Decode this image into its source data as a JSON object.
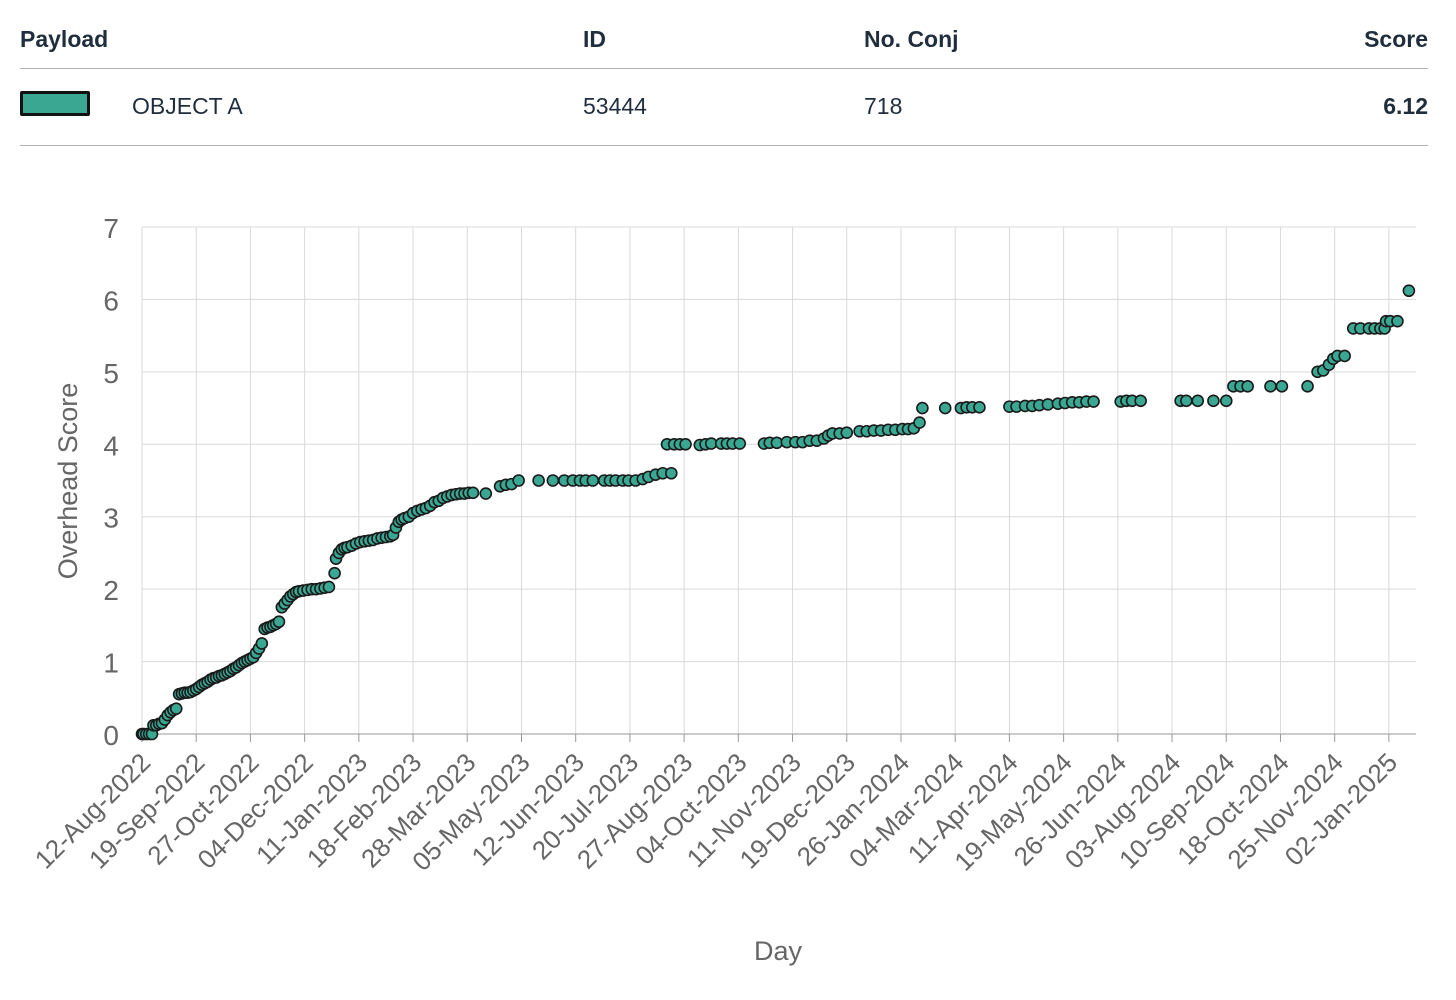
{
  "table": {
    "headers": {
      "payload": "Payload",
      "id": "ID",
      "no_conj": "No. Conj",
      "score": "Score"
    },
    "row": {
      "payload": "OBJECT A",
      "id": "53444",
      "no_conj": "718",
      "score": "6.12",
      "swatch_color": "#3aa792"
    }
  },
  "colors": {
    "marker_fill": "#3aa792",
    "marker_stroke": "#1a1a1a",
    "grid": "#d9d9d9",
    "axis_text": "#666666"
  },
  "chart_data": {
    "type": "scatter",
    "xlabel": "Day",
    "ylabel": "Overhead Score",
    "ylim": [
      0,
      7
    ],
    "yticks": [
      "0",
      "1",
      "2",
      "3",
      "4",
      "5",
      "6",
      "7"
    ],
    "xticks": [
      "12-Aug-2022",
      "19-Sep-2022",
      "27-Oct-2022",
      "04-Dec-2022",
      "11-Jan-2023",
      "18-Feb-2023",
      "28-Mar-2023",
      "05-May-2023",
      "12-Jun-2023",
      "20-Jul-2023",
      "27-Aug-2023",
      "04-Oct-2023",
      "11-Nov-2023",
      "19-Dec-2023",
      "26-Jan-2024",
      "04-Mar-2024",
      "11-Apr-2024",
      "19-May-2024",
      "26-Jun-2024",
      "03-Aug-2024",
      "10-Sep-2024",
      "18-Oct-2024",
      "25-Nov-2024",
      "02-Jan-2025"
    ],
    "xlim": [
      "12-Aug-2022",
      "21-Jan-2025"
    ],
    "grid": true,
    "series": [
      {
        "points": [
          [
            "12-Aug-2022",
            0.0
          ],
          [
            "13-Aug-2022",
            0.0
          ],
          [
            "15-Aug-2022",
            0.0
          ],
          [
            "17-Aug-2022",
            0.0
          ],
          [
            "19-Aug-2022",
            0.0
          ],
          [
            "20-Aug-2022",
            0.12
          ],
          [
            "22-Aug-2022",
            0.12
          ],
          [
            "24-Aug-2022",
            0.14
          ],
          [
            "26-Aug-2022",
            0.15
          ],
          [
            "28-Aug-2022",
            0.2
          ],
          [
            "30-Aug-2022",
            0.26
          ],
          [
            "01-Sep-2022",
            0.3
          ],
          [
            "03-Sep-2022",
            0.33
          ],
          [
            "05-Sep-2022",
            0.35
          ],
          [
            "07-Sep-2022",
            0.55
          ],
          [
            "09-Sep-2022",
            0.56
          ],
          [
            "11-Sep-2022",
            0.57
          ],
          [
            "13-Sep-2022",
            0.57
          ],
          [
            "15-Sep-2022",
            0.58
          ],
          [
            "17-Sep-2022",
            0.6
          ],
          [
            "19-Sep-2022",
            0.62
          ],
          [
            "21-Sep-2022",
            0.65
          ],
          [
            "23-Sep-2022",
            0.68
          ],
          [
            "25-Sep-2022",
            0.7
          ],
          [
            "27-Sep-2022",
            0.72
          ],
          [
            "29-Sep-2022",
            0.75
          ],
          [
            "01-Oct-2022",
            0.77
          ],
          [
            "03-Oct-2022",
            0.78
          ],
          [
            "05-Oct-2022",
            0.8
          ],
          [
            "07-Oct-2022",
            0.81
          ],
          [
            "09-Oct-2022",
            0.83
          ],
          [
            "11-Oct-2022",
            0.85
          ],
          [
            "13-Oct-2022",
            0.87
          ],
          [
            "15-Oct-2022",
            0.9
          ],
          [
            "17-Oct-2022",
            0.92
          ],
          [
            "19-Oct-2022",
            0.95
          ],
          [
            "21-Oct-2022",
            0.98
          ],
          [
            "23-Oct-2022",
            1.0
          ],
          [
            "25-Oct-2022",
            1.02
          ],
          [
            "27-Oct-2022",
            1.04
          ],
          [
            "29-Oct-2022",
            1.06
          ],
          [
            "31-Oct-2022",
            1.12
          ],
          [
            "02-Nov-2022",
            1.18
          ],
          [
            "04-Nov-2022",
            1.25
          ],
          [
            "06-Nov-2022",
            1.45
          ],
          [
            "08-Nov-2022",
            1.47
          ],
          [
            "10-Nov-2022",
            1.48
          ],
          [
            "12-Nov-2022",
            1.5
          ],
          [
            "14-Nov-2022",
            1.52
          ],
          [
            "16-Nov-2022",
            1.55
          ],
          [
            "18-Nov-2022",
            1.75
          ],
          [
            "20-Nov-2022",
            1.8
          ],
          [
            "22-Nov-2022",
            1.85
          ],
          [
            "24-Nov-2022",
            1.9
          ],
          [
            "26-Nov-2022",
            1.93
          ],
          [
            "28-Nov-2022",
            1.96
          ],
          [
            "30-Nov-2022",
            1.97
          ],
          [
            "03-Dec-2022",
            1.98
          ],
          [
            "06-Dec-2022",
            1.99
          ],
          [
            "09-Dec-2022",
            2.0
          ],
          [
            "12-Dec-2022",
            2.0
          ],
          [
            "15-Dec-2022",
            2.01
          ],
          [
            "18-Dec-2022",
            2.02
          ],
          [
            "21-Dec-2022",
            2.03
          ],
          [
            "25-Dec-2022",
            2.22
          ],
          [
            "26-Dec-2022",
            2.42
          ],
          [
            "28-Dec-2022",
            2.5
          ],
          [
            "30-Dec-2022",
            2.55
          ],
          [
            "01-Jan-2023",
            2.57
          ],
          [
            "03-Jan-2023",
            2.58
          ],
          [
            "06-Jan-2023",
            2.6
          ],
          [
            "09-Jan-2023",
            2.63
          ],
          [
            "12-Jan-2023",
            2.65
          ],
          [
            "15-Jan-2023",
            2.66
          ],
          [
            "18-Jan-2023",
            2.67
          ],
          [
            "21-Jan-2023",
            2.68
          ],
          [
            "24-Jan-2023",
            2.7
          ],
          [
            "27-Jan-2023",
            2.71
          ],
          [
            "30-Jan-2023",
            2.72
          ],
          [
            "02-Feb-2023",
            2.73
          ],
          [
            "04-Feb-2023",
            2.75
          ],
          [
            "06-Feb-2023",
            2.85
          ],
          [
            "08-Feb-2023",
            2.93
          ],
          [
            "10-Feb-2023",
            2.96
          ],
          [
            "12-Feb-2023",
            2.98
          ],
          [
            "15-Feb-2023",
            3.0
          ],
          [
            "18-Feb-2023",
            3.05
          ],
          [
            "21-Feb-2023",
            3.08
          ],
          [
            "24-Feb-2023",
            3.1
          ],
          [
            "27-Feb-2023",
            3.12
          ],
          [
            "02-Mar-2023",
            3.15
          ],
          [
            "05-Mar-2023",
            3.2
          ],
          [
            "08-Mar-2023",
            3.22
          ],
          [
            "11-Mar-2023",
            3.26
          ],
          [
            "14-Mar-2023",
            3.28
          ],
          [
            "17-Mar-2023",
            3.3
          ],
          [
            "20-Mar-2023",
            3.31
          ],
          [
            "23-Mar-2023",
            3.32
          ],
          [
            "26-Mar-2023",
            3.32
          ],
          [
            "29-Mar-2023",
            3.33
          ],
          [
            "01-Apr-2023",
            3.33
          ],
          [
            "10-Apr-2023",
            3.32
          ],
          [
            "20-Apr-2023",
            3.42
          ],
          [
            "24-Apr-2023",
            3.44
          ],
          [
            "28-Apr-2023",
            3.45
          ],
          [
            "03-May-2023",
            3.5
          ],
          [
            "17-May-2023",
            3.5
          ],
          [
            "27-May-2023",
            3.5
          ],
          [
            "04-Jun-2023",
            3.5
          ],
          [
            "10-Jun-2023",
            3.5
          ],
          [
            "15-Jun-2023",
            3.5
          ],
          [
            "19-Jun-2023",
            3.5
          ],
          [
            "24-Jun-2023",
            3.5
          ],
          [
            "02-Jul-2023",
            3.5
          ],
          [
            "06-Jul-2023",
            3.5
          ],
          [
            "10-Jul-2023",
            3.5
          ],
          [
            "15-Jul-2023",
            3.5
          ],
          [
            "19-Jul-2023",
            3.5
          ],
          [
            "24-Jul-2023",
            3.5
          ],
          [
            "29-Jul-2023",
            3.52
          ],
          [
            "02-Aug-2023",
            3.55
          ],
          [
            "07-Aug-2023",
            3.58
          ],
          [
            "12-Aug-2023",
            3.6
          ],
          [
            "18-Aug-2023",
            3.6
          ],
          [
            "15-Aug-2023",
            4.0
          ],
          [
            "20-Aug-2023",
            4.0
          ],
          [
            "24-Aug-2023",
            4.0
          ],
          [
            "28-Aug-2023",
            4.0
          ],
          [
            "07-Sep-2023",
            3.99
          ],
          [
            "11-Sep-2023",
            4.0
          ],
          [
            "15-Sep-2023",
            4.01
          ],
          [
            "22-Sep-2023",
            4.01
          ],
          [
            "26-Sep-2023",
            4.01
          ],
          [
            "30-Sep-2023",
            4.01
          ],
          [
            "05-Oct-2023",
            4.01
          ],
          [
            "22-Oct-2023",
            4.01
          ],
          [
            "26-Oct-2023",
            4.02
          ],
          [
            "31-Oct-2023",
            4.02
          ],
          [
            "07-Nov-2023",
            4.03
          ],
          [
            "13-Nov-2023",
            4.03
          ],
          [
            "18-Nov-2023",
            4.03
          ],
          [
            "23-Nov-2023",
            4.05
          ],
          [
            "28-Nov-2023",
            4.05
          ],
          [
            "03-Dec-2023",
            4.08
          ],
          [
            "06-Dec-2023",
            4.12
          ],
          [
            "09-Dec-2023",
            4.15
          ],
          [
            "14-Dec-2023",
            4.15
          ],
          [
            "19-Dec-2023",
            4.16
          ],
          [
            "28-Dec-2023",
            4.18
          ],
          [
            "02-Jan-2024",
            4.18
          ],
          [
            "07-Jan-2024",
            4.19
          ],
          [
            "12-Jan-2024",
            4.19
          ],
          [
            "17-Jan-2024",
            4.2
          ],
          [
            "22-Jan-2024",
            4.2
          ],
          [
            "27-Jan-2024",
            4.21
          ],
          [
            "31-Jan-2024",
            4.21
          ],
          [
            "04-Feb-2024",
            4.22
          ],
          [
            "08-Feb-2024",
            4.3
          ],
          [
            "10-Feb-2024",
            4.5
          ],
          [
            "26-Feb-2024",
            4.5
          ],
          [
            "08-Mar-2024",
            4.5
          ],
          [
            "12-Mar-2024",
            4.51
          ],
          [
            "16-Mar-2024",
            4.51
          ],
          [
            "21-Mar-2024",
            4.51
          ],
          [
            "11-Apr-2024",
            4.52
          ],
          [
            "16-Apr-2024",
            4.52
          ],
          [
            "22-Apr-2024",
            4.53
          ],
          [
            "27-Apr-2024",
            4.53
          ],
          [
            "02-May-2024",
            4.54
          ],
          [
            "08-May-2024",
            4.55
          ],
          [
            "15-May-2024",
            4.56
          ],
          [
            "20-May-2024",
            4.57
          ],
          [
            "25-May-2024",
            4.58
          ],
          [
            "30-May-2024",
            4.58
          ],
          [
            "04-Jun-2024",
            4.59
          ],
          [
            "09-Jun-2024",
            4.59
          ],
          [
            "28-Jun-2024",
            4.59
          ],
          [
            "02-Jul-2024",
            4.6
          ],
          [
            "06-Jul-2024",
            4.6
          ],
          [
            "12-Jul-2024",
            4.6
          ],
          [
            "09-Aug-2024",
            4.6
          ],
          [
            "13-Aug-2024",
            4.6
          ],
          [
            "21-Aug-2024",
            4.6
          ],
          [
            "01-Sep-2024",
            4.6
          ],
          [
            "10-Sep-2024",
            4.6
          ],
          [
            "15-Sep-2024",
            4.8
          ],
          [
            "20-Sep-2024",
            4.8
          ],
          [
            "25-Sep-2024",
            4.8
          ],
          [
            "11-Oct-2024",
            4.8
          ],
          [
            "19-Oct-2024",
            4.8
          ],
          [
            "06-Nov-2024",
            4.8
          ],
          [
            "13-Nov-2024",
            5.0
          ],
          [
            "17-Nov-2024",
            5.02
          ],
          [
            "21-Nov-2024",
            5.1
          ],
          [
            "24-Nov-2024",
            5.18
          ],
          [
            "27-Nov-2024",
            5.22
          ],
          [
            "02-Dec-2024",
            5.22
          ],
          [
            "08-Dec-2024",
            5.6
          ],
          [
            "13-Dec-2024",
            5.6
          ],
          [
            "19-Dec-2024",
            5.6
          ],
          [
            "23-Dec-2024",
            5.6
          ],
          [
            "27-Dec-2024",
            5.6
          ],
          [
            "30-Dec-2024",
            5.6
          ],
          [
            "31-Dec-2024",
            5.7
          ],
          [
            "03-Jan-2025",
            5.7
          ],
          [
            "08-Jan-2025",
            5.7
          ],
          [
            "16-Jan-2025",
            6.12
          ]
        ]
      }
    ]
  }
}
